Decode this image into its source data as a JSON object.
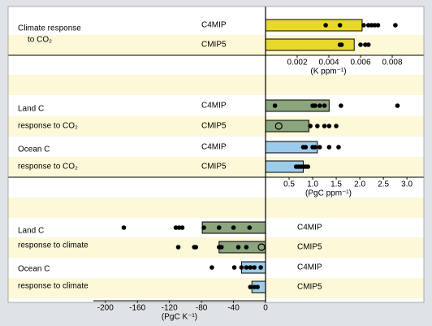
{
  "chart_data": [
    {
      "type": "bar",
      "orientation": "horizontal",
      "xlabel": "(K ppm⁻¹)",
      "xlim": [
        0,
        0.01
      ],
      "xticks": [
        0.002,
        0.004,
        0.006,
        0.008
      ],
      "groups": [
        {
          "name": [
            "Climate response",
            "to CO₂"
          ],
          "color": "#e6d92b",
          "series": [
            {
              "name": "C4MIP",
              "value": 0.0061,
              "points": [
                0.0038,
                0.0047,
                0.0062,
                0.0065,
                0.0067,
                0.0069,
                0.0071,
                0.0082
              ]
            },
            {
              "name": "CMIP5",
              "value": 0.0056,
              "points": [
                0.0047,
                0.0048,
                0.006,
                0.0063,
                0.0065
              ]
            }
          ]
        }
      ]
    },
    {
      "type": "bar",
      "orientation": "horizontal",
      "xlabel": "(PgC ppm⁻¹)",
      "xlim": [
        0,
        3.36
      ],
      "xticks": [
        0.5,
        {
          "value": 1,
          "label": "1.0"
        },
        1.5,
        {
          "value": 2,
          "label": "2.0"
        },
        2.5,
        {
          "value": 3,
          "label": "3.0"
        }
      ],
      "groups": [
        {
          "name": [
            "Land C",
            "response to CO₂"
          ],
          "color": "#8ba57c",
          "series": [
            {
              "name": "C4MIP",
              "value": 1.35,
              "points": [
                0.2,
                1.0,
                1.05,
                1.15,
                1.25,
                1.6,
                2.8
              ]
            },
            {
              "name": "CMIP5",
              "value": 0.92,
              "points": [
                0.95,
                1.1,
                1.25,
                1.35,
                1.5
              ],
              "open_points": [
                0.28
              ]
            }
          ]
        },
        {
          "name": [
            "Ocean C",
            "response to CO₂"
          ],
          "color": "#9dcbea",
          "series": [
            {
              "name": "C4MIP",
              "value": 1.1,
              "points": [
                0.8,
                0.85,
                1.0,
                1.05,
                1.15,
                1.35,
                1.55
              ]
            },
            {
              "name": "CMIP5",
              "value": 0.8,
              "points": [
                0.65,
                0.7,
                0.75,
                0.8,
                0.85,
                0.9
              ]
            }
          ]
        }
      ]
    },
    {
      "type": "bar",
      "orientation": "horizontal",
      "xlabel": "(PgC K⁻¹)",
      "xlim": [
        -215,
        0
      ],
      "xticks": [
        -200,
        -160,
        -120,
        -80,
        -40,
        0
      ],
      "groups": [
        {
          "name": [
            "Land C",
            "response to climate"
          ],
          "color": "#8ba57c",
          "series": [
            {
              "name": "C4MIP",
              "value": -79,
              "points": [
                -177,
                -112,
                -108,
                -104,
                -77,
                -58,
                -40,
                -20
              ]
            },
            {
              "name": "CMIP5",
              "value": -58,
              "points": [
                -109,
                -89,
                -87,
                -58,
                -55,
                -34,
                -24
              ],
              "open_points": [
                -5
              ]
            }
          ]
        },
        {
          "name": [
            "Ocean C",
            "response to climate"
          ],
          "color": "#9dcbea",
          "series": [
            {
              "name": "C4MIP",
              "value": -30,
              "points": [
                -67,
                -39,
                -30,
                -24,
                -19,
                -14,
                -6
              ]
            },
            {
              "name": "CMIP5",
              "value": -17,
              "points": [
                -19,
                -14,
                -10
              ]
            }
          ]
        }
      ]
    }
  ]
}
